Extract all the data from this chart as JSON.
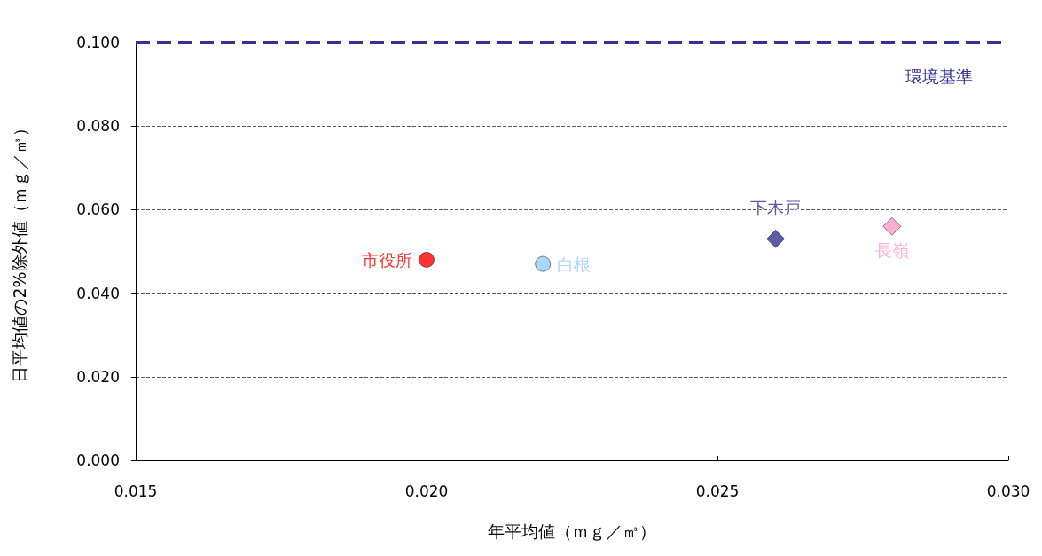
{
  "chart_data": {
    "type": "scatter",
    "xlabel": "年平均値（ｍｇ／㎥）",
    "ylabel": "日平均値の2%除外値（ｍｇ／㎥）",
    "xlim": [
      0.015,
      0.03
    ],
    "xticks": [
      {
        "value": 0.015,
        "label": "0.015"
      },
      {
        "value": 0.02,
        "label": "0.020"
      },
      {
        "value": 0.025,
        "label": "0.025"
      },
      {
        "value": 0.03,
        "label": "0.030"
      }
    ],
    "ylim": [
      0,
      0.1
    ],
    "yticks": [
      {
        "value": 0,
        "label": "0.000"
      },
      {
        "value": 0.02,
        "label": "0.020"
      },
      {
        "value": 0.04,
        "label": "0.040"
      },
      {
        "value": 0.06,
        "label": "0.060"
      },
      {
        "value": 0.08,
        "label": "0.080"
      },
      {
        "value": 0.1,
        "label": "0.100"
      }
    ],
    "grid": "y",
    "series": [
      {
        "name": "市役所",
        "color": "#ff0000",
        "marker": "circle",
        "x": [
          0.02
        ],
        "values": [
          0.048
        ]
      },
      {
        "name": "白根",
        "color": "#99ccff",
        "marker": "circle",
        "x": [
          0.022
        ],
        "values": [
          0.047
        ]
      },
      {
        "name": "下木戸",
        "color": "#333399",
        "marker": "diamond",
        "x": [
          0.026
        ],
        "values": [
          0.053
        ]
      },
      {
        "name": "長嶺",
        "color": "#ff99cc",
        "marker": "diamond",
        "x": [
          0.028
        ],
        "values": [
          0.056
        ]
      }
    ],
    "ref_lines": [
      {
        "axis": "y",
        "value": 0.1,
        "label": "環境基準",
        "color": "#333399",
        "line_style": "dashed"
      }
    ]
  }
}
